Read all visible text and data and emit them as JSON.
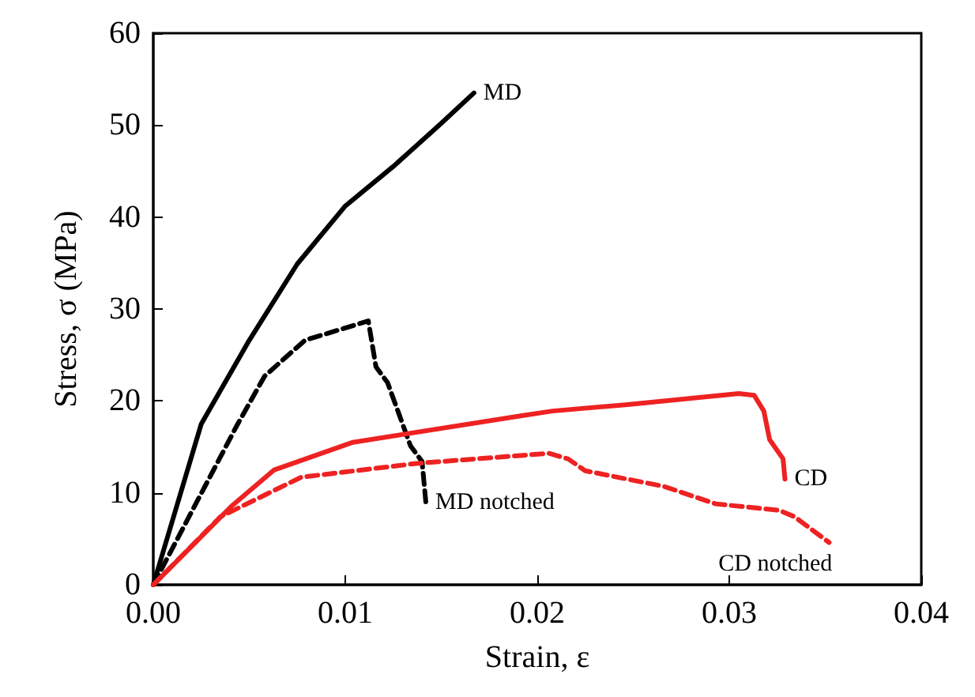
{
  "chart_data": {
    "type": "line",
    "xlabel": "Strain, ε",
    "ylabel": "Stress, σ (MPa)",
    "xlim": [
      0,
      0.04
    ],
    "xticks": [
      {
        "value": 0,
        "label": "0.00"
      },
      {
        "value": 0.01,
        "label": "0.01"
      },
      {
        "value": 0.02,
        "label": "0.02"
      },
      {
        "value": 0.03,
        "label": "0.03"
      },
      {
        "value": 0.04,
        "label": "0.04"
      }
    ],
    "ylim": [
      0,
      60
    ],
    "yticks": [
      0,
      10,
      20,
      30,
      40,
      50,
      60
    ],
    "grid": false,
    "marker": "none",
    "series": [
      {
        "name": "MD",
        "color": "#000000",
        "line_style": "solid",
        "x": [
          0,
          0.0025,
          0.005,
          0.0075,
          0.01,
          0.0125,
          0.015,
          0.0167
        ],
        "values": [
          0,
          17.5,
          26.6,
          34.9,
          41.2,
          45.5,
          50.2,
          53.5
        ]
      },
      {
        "name": "MD notched",
        "color": "#000000",
        "line_style": "dashed",
        "x": [
          0,
          0.0044,
          0.0058,
          0.0079,
          0.0112,
          0.0116,
          0.0122,
          0.0134,
          0.014,
          0.0142
        ],
        "values": [
          0,
          17.5,
          22.7,
          26.6,
          28.7,
          23.7,
          22,
          15.1,
          13.4,
          8.9
        ]
      },
      {
        "name": "CD",
        "color": "#ee2222",
        "line_style": "solid",
        "x": [
          0,
          0.0041,
          0.0063,
          0.0104,
          0.0192,
          0.0208,
          0.0247,
          0.0305,
          0.0313,
          0.0318,
          0.0321,
          0.0328,
          0.0329
        ],
        "values": [
          0,
          8.6,
          12.5,
          15.5,
          18.4,
          18.9,
          19.6,
          20.8,
          20.6,
          18.9,
          15.8,
          13.7,
          11.5
        ]
      },
      {
        "name": "CD notched",
        "color": "#ee2222",
        "line_style": "dashed",
        "x": [
          0,
          0.0035,
          0.0077,
          0.0137,
          0.0206,
          0.0216,
          0.0225,
          0.0266,
          0.0293,
          0.0326,
          0.0334,
          0.0352
        ],
        "values": [
          0,
          7.4,
          11.7,
          13.2,
          14.3,
          13.7,
          12.4,
          10.7,
          8.8,
          8.1,
          7.4,
          4.6
        ]
      }
    ]
  }
}
